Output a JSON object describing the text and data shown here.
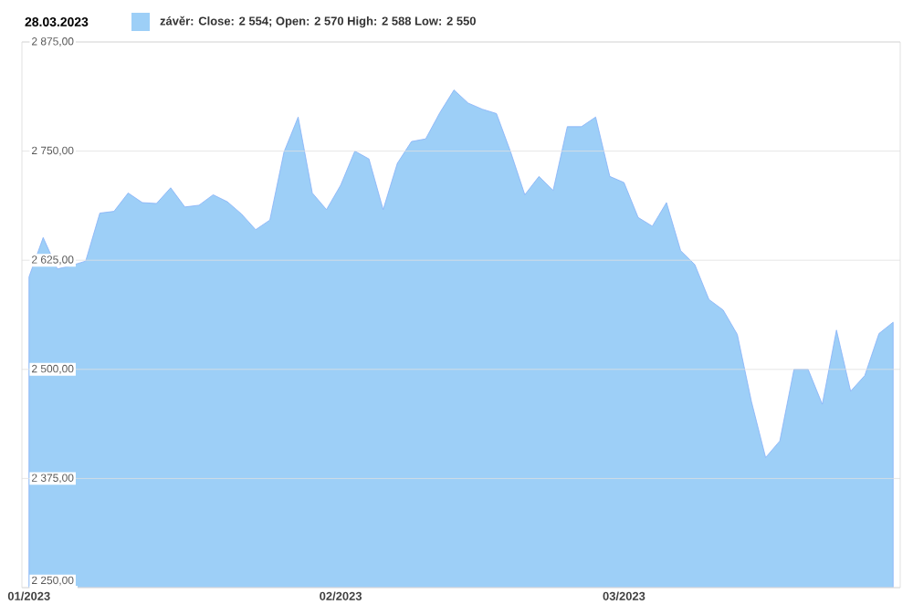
{
  "chart_data": {
    "type": "area",
    "title": "28.03.2023",
    "categories": [
      "01/2023",
      null,
      null,
      null,
      null,
      null,
      null,
      null,
      null,
      null,
      null,
      null,
      null,
      null,
      null,
      null,
      null,
      null,
      null,
      null,
      null,
      null,
      "02/2023",
      null,
      null,
      null,
      null,
      null,
      null,
      null,
      null,
      null,
      null,
      null,
      null,
      null,
      null,
      null,
      null,
      null,
      null,
      null,
      "03/2023",
      null,
      null,
      null,
      null,
      null,
      null,
      null,
      null,
      null,
      null,
      null,
      null,
      null,
      null,
      null,
      null,
      null,
      null,
      null
    ],
    "series": [
      {
        "name": "závěr: Close: 2 554; Open: 2 570 High: 2 588 Low: 2 550",
        "color": "#9dcff7",
        "values": [
          2606,
          2651,
          2615,
          2619,
          2624,
          2679,
          2681,
          2702,
          2691,
          2690,
          2708,
          2686,
          2688,
          2700,
          2692,
          2678,
          2660,
          2671,
          2749,
          2789,
          2702,
          2683,
          2711,
          2750,
          2741,
          2683,
          2736,
          2761,
          2764,
          2794,
          2820,
          2805,
          2798,
          2793,
          2749,
          2700,
          2721,
          2705,
          2778,
          2778,
          2789,
          2721,
          2714,
          2674,
          2664,
          2691,
          2636,
          2620,
          2580,
          2568,
          2540,
          2463,
          2399,
          2418,
          2500,
          2500,
          2460,
          2545,
          2475,
          2493,
          2541,
          2554
        ]
      }
    ],
    "ylim": [
      2250,
      2875
    ],
    "yticks": [
      {
        "value": 2250,
        "label": "2 250,00"
      },
      {
        "value": 2375,
        "label": "2 375,00"
      },
      {
        "value": 2500,
        "label": "2 500,00"
      },
      {
        "value": 2625,
        "label": "2 625,00"
      },
      {
        "value": 2750,
        "label": "2 750,00"
      },
      {
        "value": 2875,
        "label": "2 875,00"
      }
    ],
    "grid": "y",
    "legend": "top left"
  }
}
